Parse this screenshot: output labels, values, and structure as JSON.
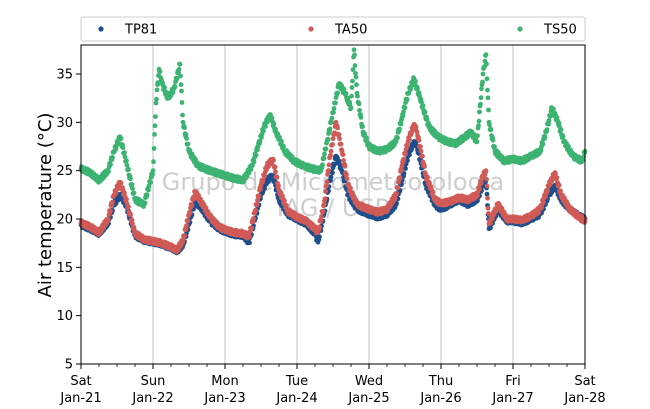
{
  "chart_data": {
    "type": "scatter",
    "ylabel": "Air temperature (°C)",
    "xlabel": "",
    "ylim": [
      5,
      38
    ],
    "xlim": [
      "2024-01-21",
      "2024-01-28"
    ],
    "yticks": [
      5,
      10,
      15,
      20,
      25,
      30,
      35
    ],
    "x_ticks": [
      {
        "day": "Sat",
        "date": "Jan-21"
      },
      {
        "day": "Sun",
        "date": "Jan-22"
      },
      {
        "day": "Mon",
        "date": "Jan-23"
      },
      {
        "day": "Tue",
        "date": "Jan-24"
      },
      {
        "day": "Wed",
        "date": "Jan-25"
      },
      {
        "day": "Thu",
        "date": "Jan-26"
      },
      {
        "day": "Fri",
        "date": "Jan-27"
      },
      {
        "day": "Sat",
        "date": "Jan-28"
      }
    ],
    "grid": "vertical",
    "legend_position": "top",
    "watermark": [
      "Grupo de Micrometeorologia",
      "IAG / USP"
    ],
    "series": [
      {
        "name": "TP81",
        "color": "#1f4e8c",
        "points": [
          [
            "2024-01-21 00:00",
            19.4
          ],
          [
            "2024-01-21 03:00",
            19.0
          ],
          [
            "2024-01-21 06:00",
            18.5
          ],
          [
            "2024-01-21 09:00",
            19.6
          ],
          [
            "2024-01-21 11:00",
            21.5
          ],
          [
            "2024-01-21 13:00",
            22.5
          ],
          [
            "2024-01-21 15:00",
            21.5
          ],
          [
            "2024-01-21 18:00",
            18.3
          ],
          [
            "2024-01-21 21:00",
            17.8
          ],
          [
            "2024-01-22 00:00",
            17.6
          ],
          [
            "2024-01-22 03:00",
            17.4
          ],
          [
            "2024-01-22 06:00",
            17.0
          ],
          [
            "2024-01-22 08:00",
            16.7
          ],
          [
            "2024-01-22 10:00",
            17.3
          ],
          [
            "2024-01-22 12:00",
            19.5
          ],
          [
            "2024-01-22 14:00",
            21.8
          ],
          [
            "2024-01-22 16:00",
            21.2
          ],
          [
            "2024-01-22 19:00",
            19.8
          ],
          [
            "2024-01-22 22:00",
            19.0
          ],
          [
            "2024-01-23 00:00",
            18.7
          ],
          [
            "2024-01-23 03:00",
            18.4
          ],
          [
            "2024-01-23 06:00",
            18.3
          ],
          [
            "2024-01-23 08:00",
            17.6
          ],
          [
            "2024-01-23 10:00",
            20.0
          ],
          [
            "2024-01-23 12:00",
            22.5
          ],
          [
            "2024-01-23 14:00",
            24.0
          ],
          [
            "2024-01-23 16:00",
            24.5
          ],
          [
            "2024-01-23 18:00",
            22.0
          ],
          [
            "2024-01-23 21:00",
            20.5
          ],
          [
            "2024-01-24 00:00",
            20.0
          ],
          [
            "2024-01-24 03:00",
            19.5
          ],
          [
            "2024-01-24 06:00",
            18.5
          ],
          [
            "2024-01-24 07:00",
            17.6
          ],
          [
            "2024-01-24 09:00",
            20.5
          ],
          [
            "2024-01-24 11:00",
            24.0
          ],
          [
            "2024-01-24 13:00",
            26.5
          ],
          [
            "2024-01-24 15:00",
            25.0
          ],
          [
            "2024-01-24 17:00",
            22.5
          ],
          [
            "2024-01-24 20:00",
            21.0
          ],
          [
            "2024-01-25 00:00",
            20.5
          ],
          [
            "2024-01-25 03:00",
            20.2
          ],
          [
            "2024-01-25 06:00",
            20.5
          ],
          [
            "2024-01-25 09:00",
            21.5
          ],
          [
            "2024-01-25 11:00",
            24.0
          ],
          [
            "2024-01-25 13:00",
            26.5
          ],
          [
            "2024-01-25 15:00",
            28.0
          ],
          [
            "2024-01-25 16:00",
            27.5
          ],
          [
            "2024-01-25 19:00",
            23.5
          ],
          [
            "2024-01-25 22:00",
            21.5
          ],
          [
            "2024-01-26 00:00",
            21.0
          ],
          [
            "2024-01-26 03:00",
            21.5
          ],
          [
            "2024-01-26 06:00",
            22.0
          ],
          [
            "2024-01-26 09:00",
            21.5
          ],
          [
            "2024-01-26 12:00",
            22.0
          ],
          [
            "2024-01-26 14:00",
            23.5
          ],
          [
            "2024-01-26 15:00",
            24.0
          ],
          [
            "2024-01-26 16:00",
            19.0
          ],
          [
            "2024-01-26 19:00",
            21.0
          ],
          [
            "2024-01-26 22:00",
            19.8
          ],
          [
            "2024-01-27 00:00",
            19.8
          ],
          [
            "2024-01-27 03:00",
            19.6
          ],
          [
            "2024-01-27 06:00",
            20.0
          ],
          [
            "2024-01-27 09:00",
            20.5
          ],
          [
            "2024-01-27 12:00",
            22.5
          ],
          [
            "2024-01-27 14:00",
            23.5
          ],
          [
            "2024-01-27 16:00",
            22.0
          ],
          [
            "2024-01-27 19:00",
            21.0
          ],
          [
            "2024-01-27 22:00",
            20.3
          ],
          [
            "2024-01-28 00:00",
            20.0
          ]
        ]
      },
      {
        "name": "TA50",
        "color": "#d05a56",
        "points": [
          [
            "2024-01-21 00:00",
            19.6
          ],
          [
            "2024-01-21 03:00",
            19.2
          ],
          [
            "2024-01-21 06:00",
            18.6
          ],
          [
            "2024-01-21 09:00",
            20.0
          ],
          [
            "2024-01-21 11:00",
            22.5
          ],
          [
            "2024-01-21 13:00",
            23.8
          ],
          [
            "2024-01-21 15:00",
            22.0
          ],
          [
            "2024-01-21 18:00",
            18.5
          ],
          [
            "2024-01-21 21:00",
            17.9
          ],
          [
            "2024-01-22 00:00",
            17.7
          ],
          [
            "2024-01-22 03:00",
            17.5
          ],
          [
            "2024-01-22 06:00",
            17.1
          ],
          [
            "2024-01-22 08:00",
            16.8
          ],
          [
            "2024-01-22 10:00",
            17.8
          ],
          [
            "2024-01-22 12:00",
            20.5
          ],
          [
            "2024-01-22 14:00",
            22.8
          ],
          [
            "2024-01-22 16:00",
            21.8
          ],
          [
            "2024-01-22 19:00",
            20.2
          ],
          [
            "2024-01-22 22:00",
            19.2
          ],
          [
            "2024-01-23 00:00",
            18.9
          ],
          [
            "2024-01-23 03:00",
            18.6
          ],
          [
            "2024-01-23 06:00",
            18.5
          ],
          [
            "2024-01-23 08:00",
            18.2
          ],
          [
            "2024-01-23 10:00",
            20.8
          ],
          [
            "2024-01-23 12:00",
            23.5
          ],
          [
            "2024-01-23 14:00",
            25.5
          ],
          [
            "2024-01-23 16:00",
            26.2
          ],
          [
            "2024-01-23 18:00",
            23.0
          ],
          [
            "2024-01-23 21:00",
            20.8
          ],
          [
            "2024-01-24 00:00",
            20.2
          ],
          [
            "2024-01-24 03:00",
            19.8
          ],
          [
            "2024-01-24 06:00",
            19.0
          ],
          [
            "2024-01-24 07:00",
            18.6
          ],
          [
            "2024-01-24 09:00",
            21.5
          ],
          [
            "2024-01-24 11:00",
            26.5
          ],
          [
            "2024-01-24 13:00",
            30.0
          ],
          [
            "2024-01-24 15:00",
            27.0
          ],
          [
            "2024-01-24 17:00",
            23.5
          ],
          [
            "2024-01-24 20:00",
            21.5
          ],
          [
            "2024-01-25 00:00",
            21.0
          ],
          [
            "2024-01-25 03:00",
            20.7
          ],
          [
            "2024-01-25 06:00",
            21.0
          ],
          [
            "2024-01-25 09:00",
            22.5
          ],
          [
            "2024-01-25 11:00",
            25.5
          ],
          [
            "2024-01-25 13:00",
            28.0
          ],
          [
            "2024-01-25 15:00",
            29.8
          ],
          [
            "2024-01-25 16:00",
            29.0
          ],
          [
            "2024-01-25 19:00",
            24.5
          ],
          [
            "2024-01-25 22:00",
            22.0
          ],
          [
            "2024-01-26 00:00",
            21.6
          ],
          [
            "2024-01-26 03:00",
            21.8
          ],
          [
            "2024-01-26 06:00",
            22.2
          ],
          [
            "2024-01-26 09:00",
            22.0
          ],
          [
            "2024-01-26 12:00",
            22.5
          ],
          [
            "2024-01-26 14:00",
            24.5
          ],
          [
            "2024-01-26 15:00",
            25.0
          ],
          [
            "2024-01-26 16:00",
            19.5
          ],
          [
            "2024-01-26 19:00",
            21.5
          ],
          [
            "2024-01-26 22:00",
            20.0
          ],
          [
            "2024-01-27 00:00",
            20.0
          ],
          [
            "2024-01-27 03:00",
            19.9
          ],
          [
            "2024-01-27 06:00",
            20.3
          ],
          [
            "2024-01-27 09:00",
            21.0
          ],
          [
            "2024-01-27 12:00",
            23.5
          ],
          [
            "2024-01-27 14:00",
            24.8
          ],
          [
            "2024-01-27 16:00",
            22.5
          ],
          [
            "2024-01-27 19:00",
            21.0
          ],
          [
            "2024-01-27 22:00",
            20.2
          ],
          [
            "2024-01-28 00:00",
            19.8
          ]
        ]
      },
      {
        "name": "TS50",
        "color": "#3cb371",
        "points": [
          [
            "2024-01-21 00:00",
            25.2
          ],
          [
            "2024-01-21 03:00",
            24.8
          ],
          [
            "2024-01-21 06:00",
            24.0
          ],
          [
            "2024-01-21 09:00",
            25.0
          ],
          [
            "2024-01-21 11:00",
            27.0
          ],
          [
            "2024-01-21 13:00",
            28.5
          ],
          [
            "2024-01-21 15:00",
            26.0
          ],
          [
            "2024-01-21 18:00",
            22.0
          ],
          [
            "2024-01-21 21:00",
            21.5
          ],
          [
            "2024-01-22 00:00",
            25.0
          ],
          [
            "2024-01-22 01:00",
            32.0
          ],
          [
            "2024-01-22 02:00",
            35.5
          ],
          [
            "2024-01-22 03:00",
            34.0
          ],
          [
            "2024-01-22 05:00",
            32.5
          ],
          [
            "2024-01-22 07:00",
            33.5
          ],
          [
            "2024-01-22 09:00",
            36.0
          ],
          [
            "2024-01-22 10:00",
            30.0
          ],
          [
            "2024-01-22 12:00",
            27.0
          ],
          [
            "2024-01-22 15:00",
            25.5
          ],
          [
            "2024-01-22 19:00",
            25.0
          ],
          [
            "2024-01-23 00:00",
            24.5
          ],
          [
            "2024-01-23 03:00",
            24.2
          ],
          [
            "2024-01-23 06:00",
            24.0
          ],
          [
            "2024-01-23 09:00",
            25.5
          ],
          [
            "2024-01-23 11:00",
            27.5
          ],
          [
            "2024-01-23 13:00",
            29.5
          ],
          [
            "2024-01-23 15:00",
            30.8
          ],
          [
            "2024-01-23 17:00",
            29.0
          ],
          [
            "2024-01-23 20:00",
            27.0
          ],
          [
            "2024-01-23 23:00",
            26.0
          ],
          [
            "2024-01-24 02:00",
            25.5
          ],
          [
            "2024-01-24 05:00",
            25.2
          ],
          [
            "2024-01-24 08:00",
            25.0
          ],
          [
            "2024-01-24 10:00",
            28.0
          ],
          [
            "2024-01-24 12:00",
            31.0
          ],
          [
            "2024-01-24 14:00",
            34.0
          ],
          [
            "2024-01-24 16:00",
            33.0
          ],
          [
            "2024-01-24 18:00",
            31.5
          ],
          [
            "2024-01-24 19:00",
            37.5
          ],
          [
            "2024-01-24 20:00",
            33.0
          ],
          [
            "2024-01-24 22:00",
            29.0
          ],
          [
            "2024-01-25 00:00",
            27.5
          ],
          [
            "2024-01-25 03:00",
            27.0
          ],
          [
            "2024-01-25 06:00",
            27.2
          ],
          [
            "2024-01-25 09:00",
            28.0
          ],
          [
            "2024-01-25 11:00",
            30.5
          ],
          [
            "2024-01-25 13:00",
            33.0
          ],
          [
            "2024-01-25 15:00",
            34.5
          ],
          [
            "2024-01-25 17:00",
            32.5
          ],
          [
            "2024-01-25 20:00",
            29.5
          ],
          [
            "2024-01-25 23:00",
            28.5
          ],
          [
            "2024-01-26 02:00",
            28.0
          ],
          [
            "2024-01-26 05:00",
            27.8
          ],
          [
            "2024-01-26 08:00",
            28.5
          ],
          [
            "2024-01-26 10:00",
            29.0
          ],
          [
            "2024-01-26 12:00",
            28.0
          ],
          [
            "2024-01-26 14:00",
            35.0
          ],
          [
            "2024-01-26 15:00",
            37.0
          ],
          [
            "2024-01-26 16:00",
            30.0
          ],
          [
            "2024-01-26 18:00",
            27.0
          ],
          [
            "2024-01-26 21:00",
            26.0
          ],
          [
            "2024-01-27 00:00",
            26.2
          ],
          [
            "2024-01-27 03:00",
            26.0
          ],
          [
            "2024-01-27 06:00",
            26.5
          ],
          [
            "2024-01-27 09:00",
            27.0
          ],
          [
            "2024-01-27 11:00",
            29.0
          ],
          [
            "2024-01-27 13:00",
            31.5
          ],
          [
            "2024-01-27 15:00",
            30.0
          ],
          [
            "2024-01-27 17:00",
            28.0
          ],
          [
            "2024-01-27 20:00",
            26.5
          ],
          [
            "2024-01-27 23:00",
            26.0
          ],
          [
            "2024-01-28 00:00",
            27.0
          ]
        ]
      }
    ]
  }
}
